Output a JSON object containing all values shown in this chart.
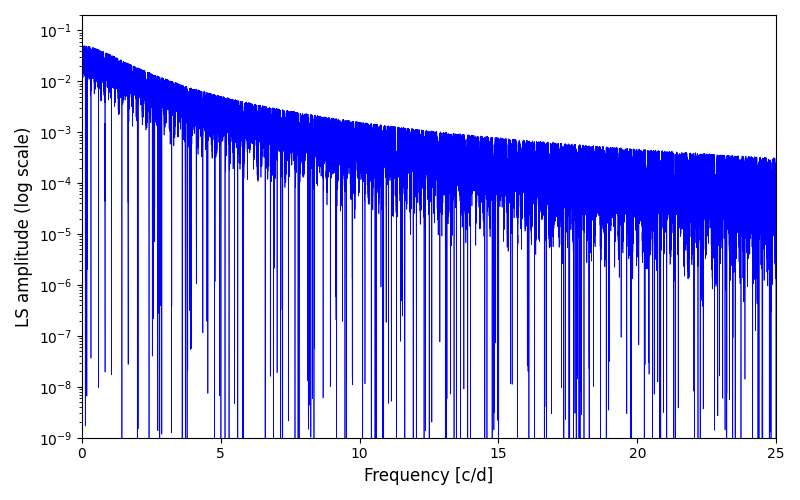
{
  "title": "",
  "xlabel": "Frequency [c/d]",
  "ylabel": "LS amplitude (log scale)",
  "line_color": "#0000ff",
  "line_width": 0.5,
  "xlim": [
    0,
    25
  ],
  "freq_max": 25.0,
  "n_points": 50000,
  "seed": 12345,
  "background_color": "#ffffff",
  "figsize": [
    8.0,
    5.0
  ],
  "dpi": 100
}
